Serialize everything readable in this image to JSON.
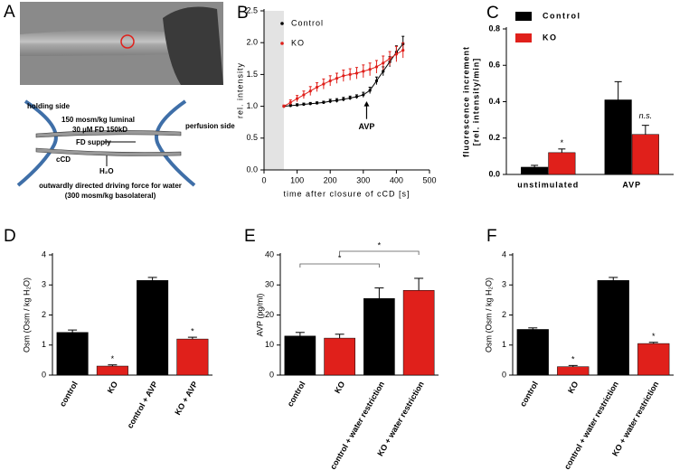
{
  "diagram": {
    "panel": "A",
    "holding": "holding side",
    "luminal": "150 mosm/kg luminal",
    "fd": "30 µM FD 150kD",
    "perfusion": "perfusion side",
    "supply": "FD supply",
    "ccd": "cCD",
    "water": "H₂O",
    "force": "outwardly directed driving force for water",
    "basolateral": "(300 mosm/kg basolateral)"
  },
  "chart_data": [
    {
      "type": "line",
      "panel": "B",
      "xlabel": "time after closure of cCD [s]",
      "ylabel": "rel. intensity",
      "xlim": [
        0,
        500
      ],
      "xticks": [
        0,
        100,
        200,
        300,
        400,
        500
      ],
      "ylim": [
        0,
        2.5
      ],
      "yticks": [
        {
          "value": 0,
          "label": "0.0"
        },
        {
          "value": 0.5,
          "label": "0.5"
        },
        {
          "value": 1,
          "label": "1.0"
        },
        {
          "value": 1.5,
          "label": "1.5"
        },
        {
          "value": 2,
          "label": "2.0"
        },
        {
          "value": 2.5,
          "label": "2.5"
        }
      ],
      "shade": [
        0,
        60
      ],
      "x": [
        60,
        80,
        100,
        120,
        140,
        160,
        180,
        200,
        220,
        240,
        260,
        280,
        300,
        320,
        340,
        360,
        380,
        400,
        420
      ],
      "series": [
        {
          "name": "Control",
          "color": "#000000",
          "values": [
            1.0,
            1.01,
            1.02,
            1.03,
            1.04,
            1.05,
            1.06,
            1.08,
            1.09,
            1.11,
            1.13,
            1.15,
            1.18,
            1.25,
            1.4,
            1.55,
            1.7,
            1.85,
            1.98
          ],
          "errors": [
            0.01,
            0.02,
            0.02,
            0.02,
            0.02,
            0.02,
            0.02,
            0.03,
            0.03,
            0.03,
            0.03,
            0.03,
            0.04,
            0.05,
            0.06,
            0.07,
            0.08,
            0.1,
            0.12
          ]
        },
        {
          "name": "KO",
          "color": "#e0201b",
          "values": [
            1.0,
            1.06,
            1.12,
            1.18,
            1.24,
            1.3,
            1.35,
            1.4,
            1.44,
            1.48,
            1.5,
            1.52,
            1.55,
            1.58,
            1.62,
            1.68,
            1.75,
            1.82,
            1.88
          ],
          "errors": [
            0.02,
            0.04,
            0.05,
            0.06,
            0.07,
            0.07,
            0.08,
            0.08,
            0.08,
            0.09,
            0.09,
            0.09,
            0.1,
            0.1,
            0.1,
            0.11,
            0.11,
            0.12,
            0.12
          ]
        }
      ],
      "annotations": [
        {
          "text": "AVP",
          "x": 310
        }
      ]
    },
    {
      "type": "grouped-bar",
      "panel": "C",
      "ylabel": [
        "fluorescence increment",
        "[rel. intensity/min]"
      ],
      "categories": [
        "unstimulated",
        "AVP"
      ],
      "ylim": [
        0,
        0.8
      ],
      "yticks": [
        {
          "value": 0,
          "label": "0.0"
        },
        0.2,
        0.4,
        0.6,
        0.8
      ],
      "series": [
        {
          "name": "Control",
          "color": "#000000",
          "values": [
            0.04,
            0.41
          ],
          "errors": [
            0.01,
            0.1
          ]
        },
        {
          "name": "KO",
          "color": "#e0201b",
          "values": [
            0.12,
            0.22
          ],
          "errors": [
            0.02,
            0.05
          ]
        }
      ],
      "annotations": [
        "*",
        "n.s."
      ]
    },
    {
      "type": "bar",
      "panel": "D",
      "ylabel": "Osm (Osm / kg H₂O)",
      "categories": [
        "control",
        "KO",
        "control + AVP",
        "KO + AVP"
      ],
      "values": [
        1.42,
        0.3,
        3.15,
        1.2
      ],
      "errors": [
        0.08,
        0.04,
        0.1,
        0.06
      ],
      "colors": [
        "#000000",
        "#e0201b",
        "#000000",
        "#e0201b"
      ],
      "ylim": [
        0,
        4
      ],
      "yticks": [
        0,
        1,
        2,
        3,
        4
      ],
      "annotations": [
        "*",
        "*"
      ]
    },
    {
      "type": "bar",
      "panel": "E",
      "ylabel": "AVP (pg/ml)",
      "categories": [
        "control",
        "KO",
        "control + water restriction",
        "KO + water restriction"
      ],
      "values": [
        13,
        12.3,
        25.5,
        28.2
      ],
      "errors": [
        1.2,
        1.3,
        3.5,
        4
      ],
      "colors": [
        "#000000",
        "#e0201b",
        "#000000",
        "#e0201b"
      ],
      "ylim": [
        0,
        40
      ],
      "yticks": [
        0,
        10,
        20,
        30,
        40
      ],
      "annotations": [
        "*",
        "*"
      ]
    },
    {
      "type": "bar",
      "panel": "F",
      "ylabel": "Osm (Osm / kg H₂O)",
      "categories": [
        "control",
        "KO",
        "control + water restriction",
        "KO + water restriction"
      ],
      "values": [
        1.52,
        0.28,
        3.15,
        1.05
      ],
      "errors": [
        0.05,
        0.04,
        0.1,
        0.04
      ],
      "colors": [
        "#000000",
        "#e0201b",
        "#000000",
        "#e0201b"
      ],
      "ylim": [
        0,
        4
      ],
      "yticks": [
        0,
        1,
        2,
        3,
        4
      ],
      "annotations": [
        "*",
        "*"
      ]
    }
  ]
}
